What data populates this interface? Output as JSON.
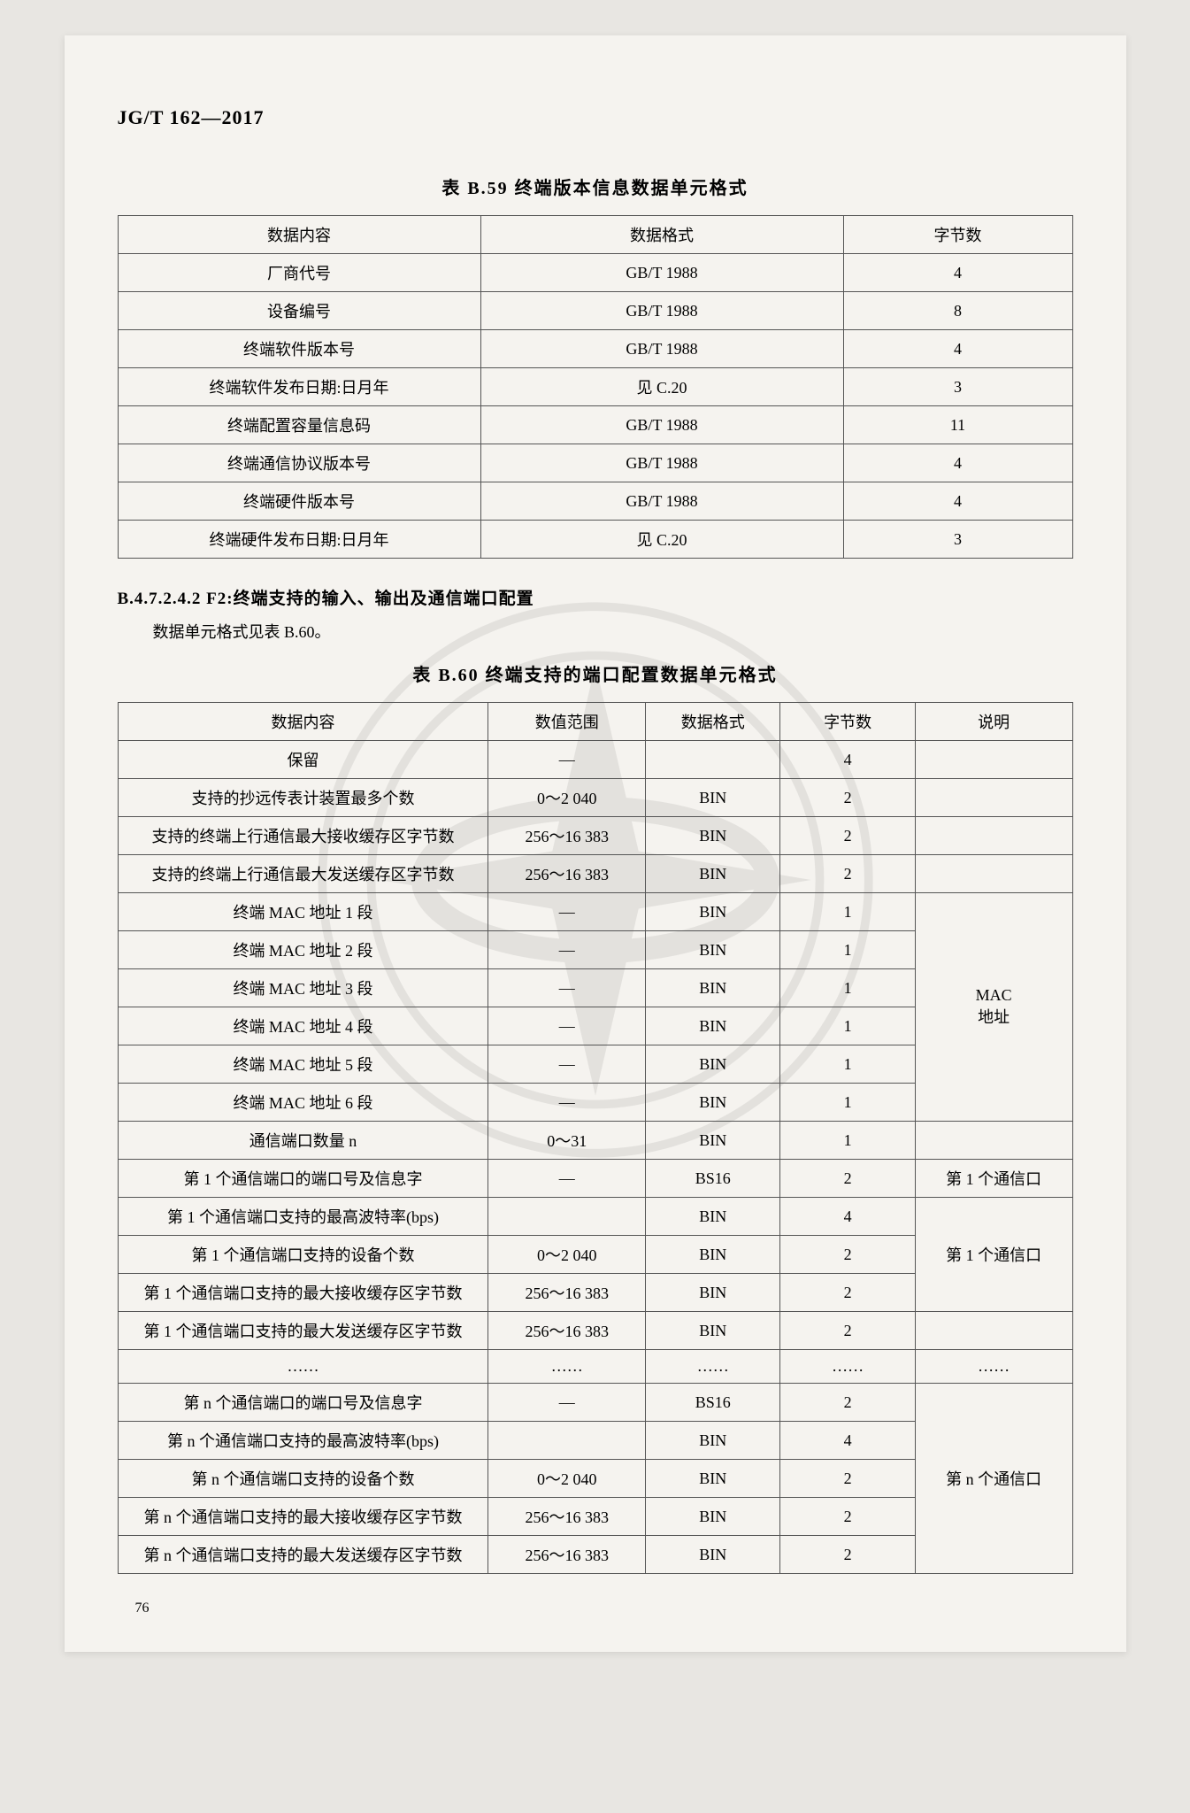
{
  "doc_id": "JG/T 162—2017",
  "page_number": "76",
  "table_b59": {
    "title": "表 B.59  终端版本信息数据单元格式",
    "headers": [
      "数据内容",
      "数据格式",
      "字节数"
    ],
    "rows": [
      [
        "厂商代号",
        "GB/T 1988",
        "4"
      ],
      [
        "设备编号",
        "GB/T 1988",
        "8"
      ],
      [
        "终端软件版本号",
        "GB/T 1988",
        "4"
      ],
      [
        "终端软件发布日期:日月年",
        "见 C.20",
        "3"
      ],
      [
        "终端配置容量信息码",
        "GB/T 1988",
        "11"
      ],
      [
        "终端通信协议版本号",
        "GB/T 1988",
        "4"
      ],
      [
        "终端硬件版本号",
        "GB/T 1988",
        "4"
      ],
      [
        "终端硬件发布日期:日月年",
        "见 C.20",
        "3"
      ]
    ]
  },
  "section_b47": {
    "heading": "B.4.7.2.4.2  F2:终端支持的输入、输出及通信端口配置",
    "text": "数据单元格式见表 B.60。"
  },
  "table_b60": {
    "title": "表 B.60  终端支持的端口配置数据单元格式",
    "headers": [
      "数据内容",
      "数值范围",
      "数据格式",
      "字节数",
      "说明"
    ],
    "rows": [
      {
        "c": [
          "保留",
          "—",
          "",
          "4"
        ],
        "note": ""
      },
      {
        "c": [
          "支持的抄远传表计装置最多个数",
          "0～2 040",
          "BIN",
          "2"
        ],
        "note": ""
      },
      {
        "c": [
          "支持的终端上行通信最大接收缓存区字节数",
          "256～16 383",
          "BIN",
          "2"
        ],
        "note": ""
      },
      {
        "c": [
          "支持的终端上行通信最大发送缓存区字节数",
          "256～16 383",
          "BIN",
          "2"
        ],
        "note": ""
      },
      {
        "c": [
          "终端 MAC 地址 1 段",
          "—",
          "BIN",
          "1"
        ],
        "note": "MAC\n地址",
        "span": 6
      },
      {
        "c": [
          "终端 MAC 地址 2 段",
          "—",
          "BIN",
          "1"
        ]
      },
      {
        "c": [
          "终端 MAC 地址 3 段",
          "—",
          "BIN",
          "1"
        ]
      },
      {
        "c": [
          "终端 MAC 地址 4 段",
          "—",
          "BIN",
          "1"
        ]
      },
      {
        "c": [
          "终端 MAC 地址 5 段",
          "—",
          "BIN",
          "1"
        ]
      },
      {
        "c": [
          "终端 MAC 地址 6 段",
          "—",
          "BIN",
          "1"
        ]
      },
      {
        "c": [
          "通信端口数量 n",
          "0～31",
          "BIN",
          "1"
        ],
        "note": ""
      },
      {
        "c": [
          "第 1 个通信端口的端口号及信息字",
          "—",
          "BS16",
          "2"
        ],
        "note": "第 1 个通信口"
      },
      {
        "c": [
          "第 1 个通信端口支持的最高波特率(bps)",
          "",
          "BIN",
          "4"
        ],
        "note": "第 1 个通信口",
        "span": 3
      },
      {
        "c": [
          "第 1 个通信端口支持的设备个数",
          "0～2 040",
          "BIN",
          "2"
        ]
      },
      {
        "c": [
          "第 1 个通信端口支持的最大接收缓存区字节数",
          "256～16 383",
          "BIN",
          "2"
        ]
      },
      {
        "c": [
          "第 1 个通信端口支持的最大发送缓存区字节数",
          "256～16 383",
          "BIN",
          "2"
        ],
        "note": ""
      },
      {
        "c": [
          "……",
          "……",
          "……",
          "……"
        ],
        "note": "……"
      },
      {
        "c": [
          "第 n 个通信端口的端口号及信息字",
          "—",
          "BS16",
          "2"
        ],
        "note": "第 n 个通信口",
        "span": 5
      },
      {
        "c": [
          "第 n 个通信端口支持的最高波特率(bps)",
          "",
          "BIN",
          "4"
        ]
      },
      {
        "c": [
          "第 n 个通信端口支持的设备个数",
          "0～2 040",
          "BIN",
          "2"
        ]
      },
      {
        "c": [
          "第 n 个通信端口支持的最大接收缓存区字节数",
          "256～16 383",
          "BIN",
          "2"
        ]
      },
      {
        "c": [
          "第 n 个通信端口支持的最大发送缓存区字节数",
          "256～16 383",
          "BIN",
          "2"
        ]
      }
    ]
  }
}
